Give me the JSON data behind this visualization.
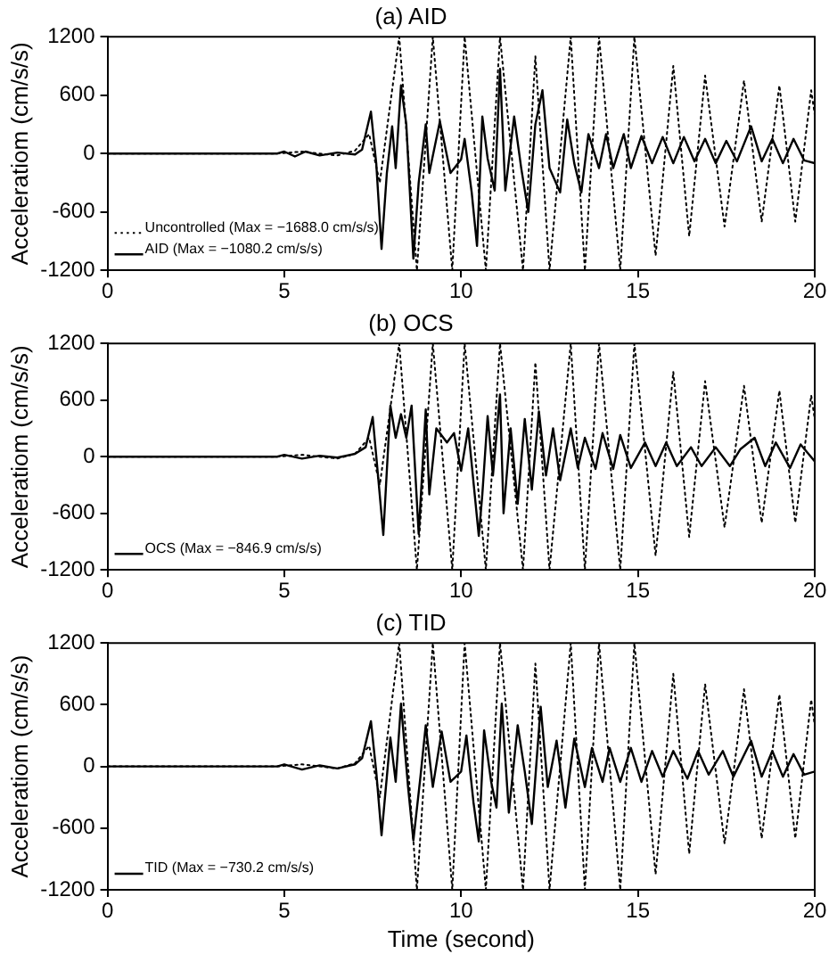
{
  "chart_data": [
    {
      "type": "line",
      "title": "(a) AID",
      "ylabel": "Acceleratiom (cm/s/s)",
      "xlim": [
        0,
        20
      ],
      "xticks": [
        0,
        5,
        10,
        15,
        20
      ],
      "ylim": [
        -1200,
        1200
      ],
      "yticks": [
        -1200,
        -600,
        0,
        600,
        1200
      ],
      "grid": false,
      "legend": "bottom left",
      "marker": "none",
      "series": [
        {
          "name": "Uncontrolled (Max = −1688.0 cm/s/s)",
          "color": "#000000",
          "line_style": "dotted",
          "x": [
            0,
            4.8,
            5.5,
            6.5,
            7,
            7.4,
            7.7,
            8.25,
            8.75,
            9.2,
            9.75,
            10.1,
            10.7,
            11.1,
            11.75,
            12.1,
            12.5,
            13.1,
            13.5,
            13.9,
            14.5,
            14.9,
            15.5,
            16,
            16.45,
            16.9,
            17.45,
            18,
            18.5,
            19,
            19.45,
            19.9,
            20
          ],
          "values": [
            0,
            0,
            20,
            -20,
            30,
            200,
            -300,
            1200,
            -1200,
            1200,
            -1200,
            1200,
            -1200,
            1200,
            -1200,
            1000,
            -1200,
            1200,
            -1200,
            1200,
            -1200,
            1200,
            -1050,
            900,
            -850,
            800,
            -750,
            750,
            -700,
            700,
            -700,
            650,
            400
          ]
        },
        {
          "name": "AID (Max = −1080.2 cm/s/s)",
          "color": "#000000",
          "line_style": "solid",
          "x": [
            0,
            4.8,
            5,
            5.3,
            5.6,
            6,
            6.5,
            7,
            7.2,
            7.45,
            7.6,
            7.75,
            7.9,
            8.05,
            8.15,
            8.3,
            8.45,
            8.65,
            8.8,
            9,
            9.1,
            9.4,
            9.7,
            10,
            10.1,
            10.3,
            10.45,
            10.6,
            10.75,
            10.95,
            11.1,
            11.25,
            11.5,
            11.7,
            11.9,
            12.1,
            12.3,
            12.5,
            12.8,
            13,
            13.2,
            13.4,
            13.6,
            13.9,
            14.1,
            14.3,
            14.6,
            14.8,
            15.1,
            15.4,
            15.7,
            16,
            16.3,
            16.6,
            16.9,
            17.2,
            17.5,
            17.8,
            18.2,
            18.5,
            18.8,
            19.1,
            19.4,
            19.7,
            20
          ],
          "values": [
            0,
            0,
            20,
            -30,
            20,
            -20,
            10,
            -10,
            40,
            430,
            -100,
            -980,
            -200,
            280,
            -150,
            700,
            300,
            -1080,
            -300,
            300,
            -200,
            330,
            -200,
            -60,
            150,
            -400,
            -950,
            380,
            -50,
            -380,
            870,
            -380,
            380,
            -150,
            -600,
            300,
            650,
            -150,
            -400,
            350,
            -100,
            -400,
            200,
            -150,
            200,
            -150,
            200,
            -150,
            180,
            -100,
            170,
            -100,
            170,
            -80,
            150,
            -100,
            130,
            -80,
            280,
            -80,
            150,
            -100,
            150,
            -70,
            -100
          ]
        }
      ]
    },
    {
      "type": "line",
      "title": "(b) OCS",
      "ylabel": "Acceleratiom (cm/s/s)",
      "xlim": [
        0,
        20
      ],
      "xticks": [
        0,
        5,
        10,
        15,
        20
      ],
      "ylim": [
        -1200,
        1200
      ],
      "yticks": [
        -1200,
        -600,
        0,
        600,
        1200
      ],
      "grid": false,
      "legend": "bottom left",
      "marker": "none",
      "series": [
        {
          "color": "#000000",
          "line_style": "dotted",
          "x": [
            0,
            4.8,
            5.5,
            6.5,
            7,
            7.4,
            7.7,
            8.25,
            8.75,
            9.2,
            9.75,
            10.1,
            10.7,
            11.1,
            11.75,
            12.1,
            12.5,
            13.1,
            13.5,
            13.9,
            14.5,
            14.9,
            15.5,
            16,
            16.45,
            16.9,
            17.45,
            18,
            18.5,
            19,
            19.45,
            19.9,
            20
          ],
          "values": [
            0,
            0,
            20,
            -20,
            30,
            200,
            -300,
            1200,
            -1200,
            1200,
            -1200,
            1200,
            -1200,
            1200,
            -1200,
            1000,
            -1200,
            1200,
            -1200,
            1200,
            -1200,
            1200,
            -1050,
            900,
            -850,
            800,
            -750,
            750,
            -700,
            700,
            -700,
            650,
            400
          ]
        },
        {
          "name": "OCS (Max = −846.9 cm/s/s)",
          "color": "#000000",
          "line_style": "solid",
          "x": [
            0,
            4.8,
            5,
            5.5,
            6,
            6.5,
            7,
            7.3,
            7.5,
            7.65,
            7.8,
            8,
            8.15,
            8.3,
            8.45,
            8.6,
            8.8,
            9,
            9.1,
            9.3,
            9.6,
            9.8,
            10,
            10.2,
            10.5,
            10.6,
            10.75,
            10.9,
            11.1,
            11.2,
            11.4,
            11.6,
            11.8,
            12,
            12.2,
            12.4,
            12.6,
            12.8,
            13.1,
            13.3,
            13.5,
            13.8,
            14,
            14.3,
            14.5,
            14.8,
            15.2,
            15.5,
            15.8,
            16.1,
            16.5,
            16.8,
            17.2,
            17.6,
            17.9,
            18.3,
            18.6,
            18.9,
            19.3,
            19.6,
            20
          ],
          "values": [
            0,
            0,
            20,
            -20,
            10,
            -10,
            30,
            100,
            420,
            -200,
            -830,
            540,
            200,
            450,
            200,
            540,
            -820,
            500,
            -400,
            300,
            150,
            250,
            -150,
            300,
            -840,
            -400,
            430,
            -200,
            660,
            -600,
            300,
            -500,
            400,
            -350,
            480,
            -200,
            300,
            -250,
            300,
            -120,
            200,
            -130,
            250,
            -130,
            230,
            -120,
            150,
            -100,
            150,
            -100,
            100,
            -100,
            100,
            -100,
            80,
            200,
            -100,
            150,
            -120,
            130,
            -50
          ]
        }
      ]
    },
    {
      "type": "line",
      "title": "(c) TID",
      "xlabel": "Time (second)",
      "ylabel": "Acceleratiom (cm/s/s)",
      "xlim": [
        0,
        20
      ],
      "xticks": [
        0,
        5,
        10,
        15,
        20
      ],
      "ylim": [
        -1200,
        1200
      ],
      "yticks": [
        -1200,
        -600,
        0,
        600,
        1200
      ],
      "grid": false,
      "legend": "bottom left",
      "marker": "none",
      "series": [
        {
          "color": "#000000",
          "line_style": "dotted",
          "x": [
            0,
            4.8,
            5.5,
            6.5,
            7,
            7.4,
            7.7,
            8.25,
            8.75,
            9.2,
            9.75,
            10.1,
            10.7,
            11.1,
            11.75,
            12.1,
            12.5,
            13.1,
            13.5,
            13.9,
            14.5,
            14.9,
            15.5,
            16,
            16.45,
            16.9,
            17.45,
            18,
            18.5,
            19,
            19.45,
            19.9,
            20
          ],
          "values": [
            0,
            0,
            20,
            -20,
            30,
            200,
            -300,
            1200,
            -1200,
            1200,
            -1200,
            1200,
            -1200,
            1200,
            -1200,
            1000,
            -1200,
            1200,
            -1200,
            1200,
            -1200,
            1200,
            -1050,
            900,
            -850,
            800,
            -750,
            750,
            -700,
            700,
            -700,
            650,
            400
          ]
        },
        {
          "name": "TID (Max = −730.2 cm/s/s)",
          "color": "#000000",
          "line_style": "solid",
          "x": [
            0,
            4.8,
            5,
            5.5,
            6,
            6.5,
            7,
            7.2,
            7.45,
            7.6,
            7.75,
            7.9,
            8,
            8.15,
            8.3,
            8.5,
            8.65,
            8.85,
            9,
            9.2,
            9.45,
            9.7,
            10,
            10.15,
            10.35,
            10.5,
            10.65,
            10.85,
            11,
            11.15,
            11.35,
            11.6,
            11.8,
            12,
            12.25,
            12.45,
            12.7,
            12.95,
            13.2,
            13.5,
            13.7,
            14,
            14.2,
            14.5,
            14.8,
            15.1,
            15.4,
            15.7,
            16,
            16.4,
            16.7,
            17,
            17.4,
            17.7,
            18.2,
            18.5,
            18.8,
            19.1,
            19.4,
            19.7,
            20
          ],
          "values": [
            0,
            0,
            20,
            -30,
            10,
            -20,
            20,
            80,
            440,
            -50,
            -670,
            -100,
            280,
            -150,
            610,
            -200,
            -720,
            -100,
            400,
            -200,
            340,
            -150,
            -50,
            300,
            -350,
            -730,
            350,
            -150,
            -400,
            610,
            -450,
            400,
            -50,
            -560,
            580,
            -200,
            250,
            -400,
            270,
            -200,
            180,
            -150,
            180,
            -150,
            180,
            -150,
            150,
            -100,
            150,
            -120,
            150,
            -80,
            150,
            -100,
            250,
            -100,
            150,
            -100,
            120,
            -80,
            -50
          ]
        }
      ]
    }
  ]
}
